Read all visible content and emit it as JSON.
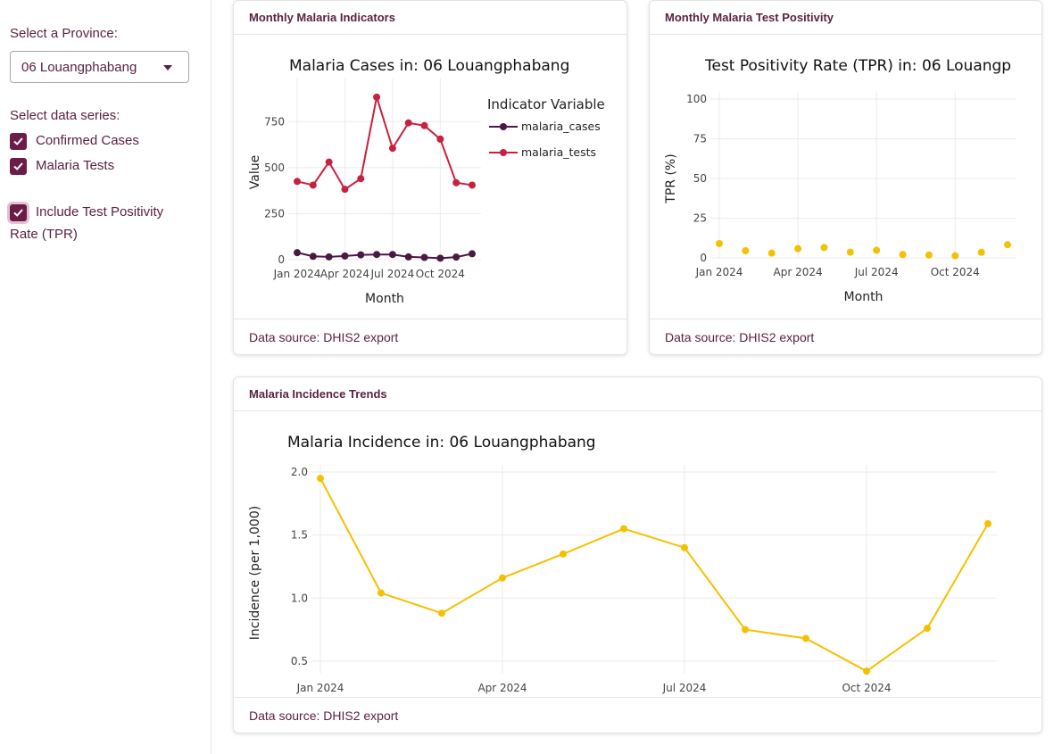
{
  "sidebar": {
    "province_label": "Select a Province:",
    "province_value": "06 Louangphabang",
    "series_label": "Select data series:",
    "series": [
      {
        "label": "Confirmed Cases",
        "checked": true
      },
      {
        "label": "Malaria Tests",
        "checked": true
      }
    ],
    "tpr_label_line1": "Include Test Positivity",
    "tpr_label_line2": "Rate (TPR)",
    "tpr_checked": true,
    "accent": "#6b1d47"
  },
  "cards": {
    "indicators": {
      "header": "Monthly Malaria Indicators",
      "footer": "Data source: DHIS2 export"
    },
    "tpr": {
      "header": "Monthly Malaria Test Positivity",
      "footer": "Data source: DHIS2 export"
    },
    "incidence": {
      "header": "Malaria Incidence Trends",
      "footer": "Data source: DHIS2 export"
    }
  },
  "chart_data": [
    {
      "type": "line",
      "title": "Malaria Cases in: 06 Louangphabang",
      "xlabel": "Month",
      "ylabel": "Value",
      "x": [
        "2024-01",
        "2024-02",
        "2024-03",
        "2024-04",
        "2024-05",
        "2024-06",
        "2024-07",
        "2024-08",
        "2024-09",
        "2024-10",
        "2024-11",
        "2024-12"
      ],
      "xticks": [
        "Jan 2024",
        "Apr 2024",
        "Jul 2024",
        "Oct 2024"
      ],
      "yticks": [
        "0",
        "250",
        "500",
        "750"
      ],
      "ylim": [
        0,
        950
      ],
      "legend_title": "Indicator Variable",
      "legend_placement": "right",
      "series": [
        {
          "name": "malaria_cases",
          "color": "#4a1942",
          "values": [
            38,
            18,
            15,
            20,
            26,
            28,
            28,
            15,
            12,
            8,
            14,
            32
          ]
        },
        {
          "name": "malaria_tests",
          "color": "#c8213f",
          "values": [
            425,
            405,
            530,
            382,
            440,
            883,
            605,
            743,
            728,
            655,
            418,
            405
          ]
        }
      ]
    },
    {
      "type": "scatter",
      "title": "Test Positivity Rate (TPR) in: 06 Louangp",
      "xlabel": "Month",
      "ylabel": "TPR (%)",
      "x": [
        "2024-01",
        "2024-02",
        "2024-03",
        "2024-04",
        "2024-05",
        "2024-06",
        "2024-07",
        "2024-08",
        "2024-09",
        "2024-10",
        "2024-11",
        "2024-12"
      ],
      "xticks": [
        "Jan 2024",
        "Apr 2024",
        "Jul 2024",
        "Oct 2024"
      ],
      "yticks": [
        "0",
        "25",
        "50",
        "75",
        "100"
      ],
      "ylim": [
        0,
        100
      ],
      "color": "#f5c000",
      "values": [
        9,
        4.5,
        3,
        5.8,
        6.5,
        3.6,
        4.8,
        2.1,
        1.8,
        1.3,
        3.5,
        8.3
      ]
    },
    {
      "type": "line",
      "title": "Malaria Incidence in: 06 Louangphabang",
      "xlabel": "Month",
      "ylabel": "Incidence (per 1,000)",
      "x": [
        "2024-01",
        "2024-02",
        "2024-03",
        "2024-04",
        "2024-05",
        "2024-06",
        "2024-07",
        "2024-08",
        "2024-09",
        "2024-10",
        "2024-11",
        "2024-12"
      ],
      "xticks": [
        "Jan 2024",
        "Apr 2024",
        "Jul 2024",
        "Oct 2024"
      ],
      "yticks": [
        "0.5",
        "1.0",
        "1.5",
        "2.0"
      ],
      "ylim": [
        0.4,
        2.0
      ],
      "color": "#f5c000",
      "values": [
        1.95,
        1.04,
        0.88,
        1.16,
        1.35,
        1.55,
        1.4,
        0.75,
        0.68,
        0.42,
        0.76,
        1.59
      ]
    }
  ]
}
